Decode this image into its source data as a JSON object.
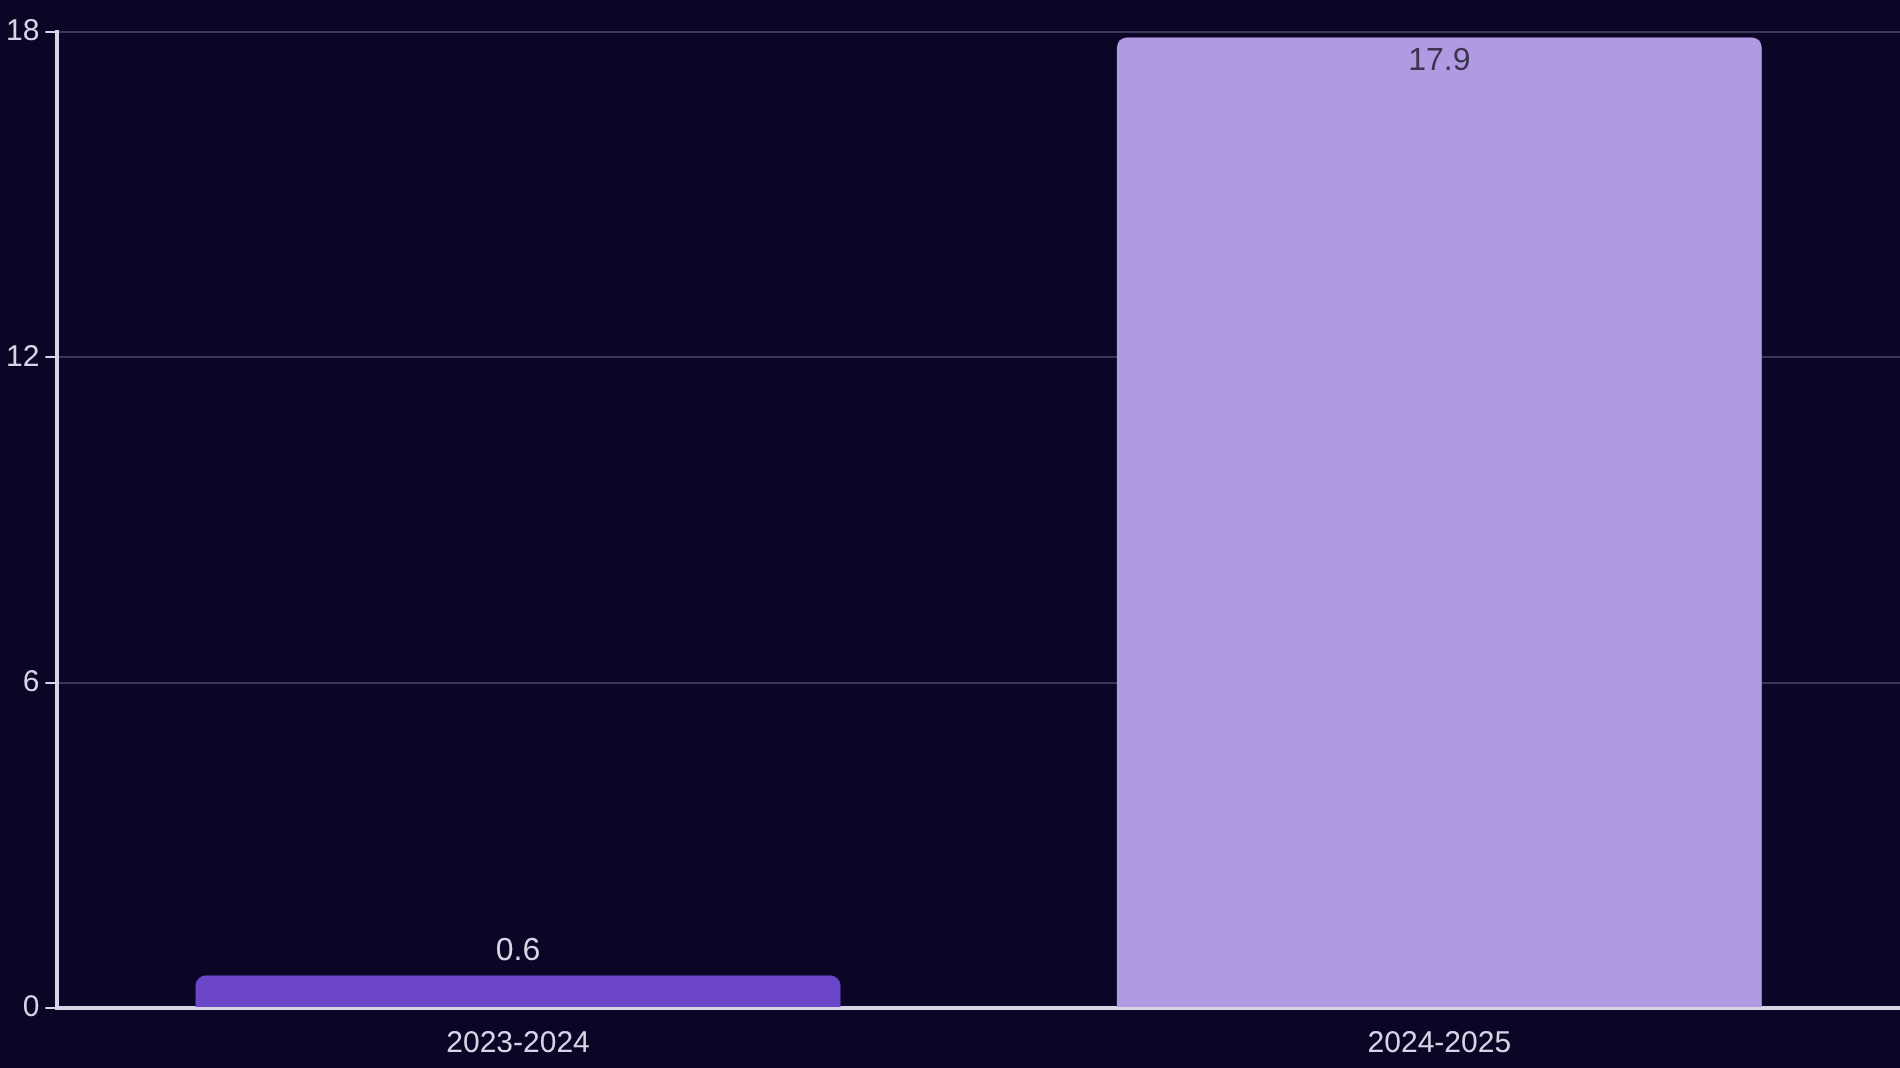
{
  "chart_data": {
    "type": "bar",
    "categories": [
      "2023-2024",
      "2024-2025"
    ],
    "values": [
      0.6,
      17.9
    ],
    "colors": [
      "#6b46c9",
      "#b09be2"
    ],
    "ylim": [
      0,
      18
    ],
    "yticks": [
      0,
      6,
      12,
      18
    ],
    "grid": "y",
    "legend": false,
    "data_labels": true
  }
}
